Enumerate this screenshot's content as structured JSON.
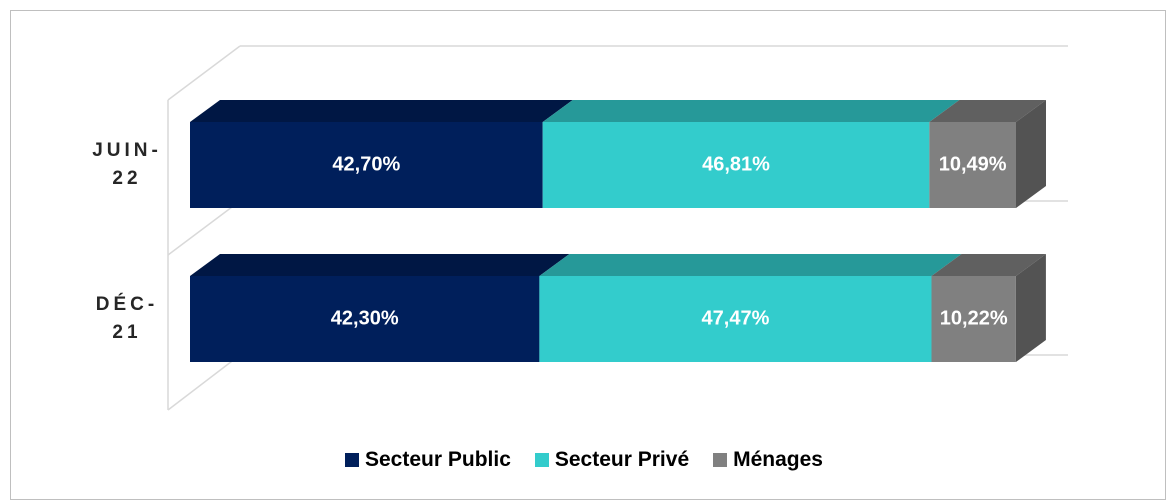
{
  "chart_data": {
    "type": "bar",
    "orientation": "horizontal",
    "stacked": true,
    "categories": [
      "JUIN-22",
      "DÉC-21"
    ],
    "series": [
      {
        "name": "Secteur Public",
        "color": "#001f5b",
        "values": [
          42.7,
          42.3
        ],
        "value_labels": [
          "42,70%",
          "42,30%"
        ]
      },
      {
        "name": "Secteur Privé",
        "color": "#33cccc",
        "values": [
          46.81,
          47.47
        ],
        "value_labels": [
          "46,81%",
          "47,47%"
        ]
      },
      {
        "name": "Ménages",
        "color": "#808080",
        "values": [
          10.49,
          10.22
        ],
        "value_labels": [
          "10,49%",
          "10,22%"
        ]
      }
    ],
    "xlim": [
      0,
      100
    ],
    "legend": "bottom"
  }
}
